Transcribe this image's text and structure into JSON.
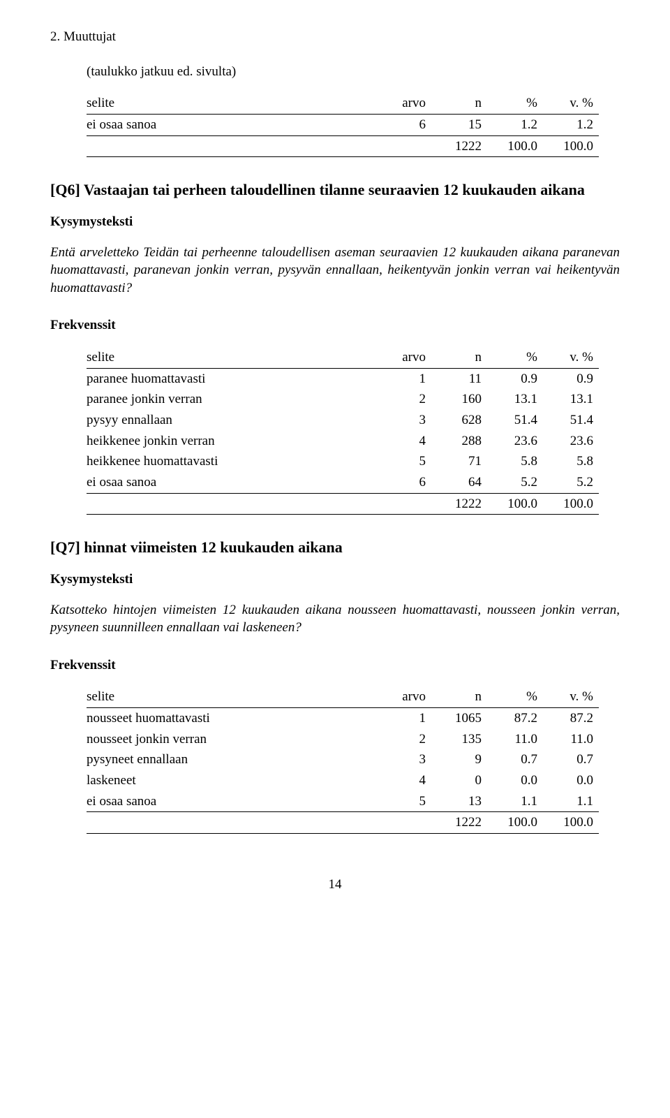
{
  "section_number": "2. Muuttujat",
  "continued_note": "(taulukko jatkuu ed. sivulta)",
  "headers": {
    "selite": "selite",
    "arvo": "arvo",
    "n": "n",
    "pct": "%",
    "vpct": "v. %"
  },
  "table1": {
    "rows": [
      {
        "selite": "ei osaa sanoa",
        "arvo": "6",
        "n": "15",
        "pct": "1.2",
        "vpct": "1.2"
      }
    ],
    "total": {
      "n": "1222",
      "pct": "100.0",
      "vpct": "100.0"
    }
  },
  "q6": {
    "title": "[Q6] Vastaajan tai perheen taloudellinen tilanne seuraavien 12 kuukauden aikana",
    "kysymysteksti_label": "Kysymysteksti",
    "question": "Entä arveletteko Teidän tai perheenne taloudellisen aseman seuraavien 12 kuukauden aikana paranevan huomattavasti, paranevan jonkin verran, pysyvän ennallaan, heikentyvän jonkin verran vai heikentyvän huomattavasti?",
    "freq_label": "Frekvenssit",
    "rows": [
      {
        "selite": "paranee huomattavasti",
        "arvo": "1",
        "n": "11",
        "pct": "0.9",
        "vpct": "0.9"
      },
      {
        "selite": "paranee jonkin verran",
        "arvo": "2",
        "n": "160",
        "pct": "13.1",
        "vpct": "13.1"
      },
      {
        "selite": "pysyy ennallaan",
        "arvo": "3",
        "n": "628",
        "pct": "51.4",
        "vpct": "51.4"
      },
      {
        "selite": "heikkenee jonkin verran",
        "arvo": "4",
        "n": "288",
        "pct": "23.6",
        "vpct": "23.6"
      },
      {
        "selite": "heikkenee huomattavasti",
        "arvo": "5",
        "n": "71",
        "pct": "5.8",
        "vpct": "5.8"
      },
      {
        "selite": "ei osaa sanoa",
        "arvo": "6",
        "n": "64",
        "pct": "5.2",
        "vpct": "5.2"
      }
    ],
    "total": {
      "n": "1222",
      "pct": "100.0",
      "vpct": "100.0"
    }
  },
  "q7": {
    "title": "[Q7] hinnat viimeisten 12 kuukauden aikana",
    "kysymysteksti_label": "Kysymysteksti",
    "question": "Katsotteko hintojen viimeisten 12 kuukauden aikana nousseen huomattavasti, nousseen jonkin verran, pysyneen suunnilleen ennallaan vai laskeneen?",
    "freq_label": "Frekvenssit",
    "rows": [
      {
        "selite": "nousseet huomattavasti",
        "arvo": "1",
        "n": "1065",
        "pct": "87.2",
        "vpct": "87.2"
      },
      {
        "selite": "nousseet jonkin verran",
        "arvo": "2",
        "n": "135",
        "pct": "11.0",
        "vpct": "11.0"
      },
      {
        "selite": "pysyneet ennallaan",
        "arvo": "3",
        "n": "9",
        "pct": "0.7",
        "vpct": "0.7"
      },
      {
        "selite": "laskeneet",
        "arvo": "4",
        "n": "0",
        "pct": "0.0",
        "vpct": "0.0"
      },
      {
        "selite": "ei osaa sanoa",
        "arvo": "5",
        "n": "13",
        "pct": "1.1",
        "vpct": "1.1"
      }
    ],
    "total": {
      "n": "1222",
      "pct": "100.0",
      "vpct": "100.0"
    }
  },
  "page_number": "14"
}
